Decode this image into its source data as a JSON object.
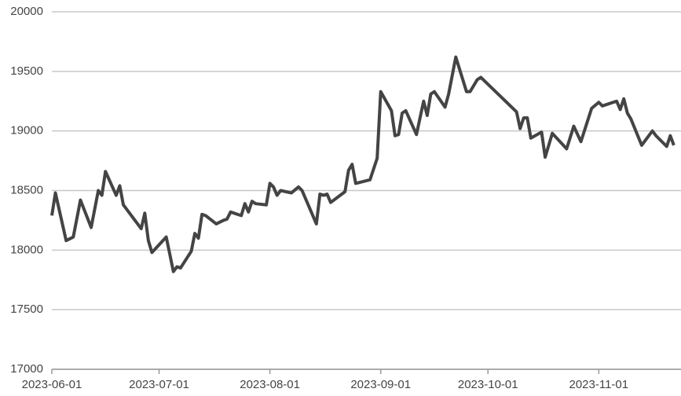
{
  "chart_data": {
    "type": "line",
    "x": [
      "2023-06-01",
      "2023-06-02",
      "2023-06-05",
      "2023-06-07",
      "2023-06-09",
      "2023-06-12",
      "2023-06-14",
      "2023-06-15",
      "2023-06-16",
      "2023-06-19",
      "2023-06-20",
      "2023-06-21",
      "2023-06-26",
      "2023-06-27",
      "2023-06-28",
      "2023-06-29",
      "2023-07-03",
      "2023-07-05",
      "2023-07-06",
      "2023-07-07",
      "2023-07-10",
      "2023-07-11",
      "2023-07-12",
      "2023-07-13",
      "2023-07-14",
      "2023-07-17",
      "2023-07-19",
      "2023-07-20",
      "2023-07-21",
      "2023-07-24",
      "2023-07-25",
      "2023-07-26",
      "2023-07-27",
      "2023-07-28",
      "2023-07-31",
      "2023-08-01",
      "2023-08-02",
      "2023-08-03",
      "2023-08-04",
      "2023-08-07",
      "2023-08-09",
      "2023-08-10",
      "2023-08-14",
      "2023-08-15",
      "2023-08-16",
      "2023-08-17",
      "2023-08-18",
      "2023-08-22",
      "2023-08-23",
      "2023-08-24",
      "2023-08-25",
      "2023-08-29",
      "2023-08-31",
      "2023-09-01",
      "2023-09-04",
      "2023-09-05",
      "2023-09-06",
      "2023-09-07",
      "2023-09-08",
      "2023-09-11",
      "2023-09-13",
      "2023-09-14",
      "2023-09-15",
      "2023-09-16",
      "2023-09-19",
      "2023-09-20",
      "2023-09-22",
      "2023-09-25",
      "2023-09-26",
      "2023-09-28",
      "2023-09-29",
      "2023-10-09",
      "2023-10-10",
      "2023-10-11",
      "2023-10-12",
      "2023-10-13",
      "2023-10-16",
      "2023-10-17",
      "2023-10-19",
      "2023-10-23",
      "2023-10-25",
      "2023-10-27",
      "2023-10-30",
      "2023-11-01",
      "2023-11-02",
      "2023-11-06",
      "2023-11-07",
      "2023-11-08",
      "2023-11-09",
      "2023-11-10",
      "2023-11-13",
      "2023-11-15",
      "2023-11-16",
      "2023-11-17",
      "2023-11-20",
      "2023-11-21",
      "2023-11-22"
    ],
    "series": [
      {
        "color": "#444444",
        "values": [
          18290,
          18480,
          18080,
          18110,
          18420,
          18190,
          18500,
          18460,
          18660,
          18460,
          18540,
          18380,
          18180,
          18310,
          18080,
          17980,
          18110,
          17820,
          17860,
          17850,
          17990,
          18140,
          18100,
          18300,
          18290,
          18220,
          18250,
          18260,
          18320,
          18290,
          18390,
          18320,
          18410,
          18390,
          18380,
          18560,
          18530,
          18460,
          18500,
          18480,
          18530,
          18500,
          18220,
          18470,
          18460,
          18470,
          18400,
          18490,
          18670,
          18720,
          18560,
          18590,
          18770,
          19330,
          19170,
          18960,
          18970,
          19150,
          19170,
          18970,
          19250,
          19130,
          19310,
          19330,
          19200,
          19310,
          19620,
          19330,
          19330,
          19430,
          19450,
          19160,
          19020,
          19110,
          19110,
          18940,
          18990,
          18780,
          18980,
          18850,
          19040,
          18910,
          19190,
          19240,
          19210,
          19250,
          19180,
          19270,
          19150,
          19100,
          18880,
          18960,
          19000,
          18960,
          18870,
          18960,
          18880
        ]
      }
    ],
    "xlim": [
      "2023-06-01",
      "2023-11-24"
    ],
    "xticks": [
      "2023-06-01",
      "2023-07-01",
      "2023-08-01",
      "2023-09-01",
      "2023-10-01",
      "2023-11-01"
    ],
    "ylim": [
      17000,
      20000
    ],
    "yticks": [
      17000,
      17500,
      18000,
      18500,
      19000,
      19500,
      20000
    ],
    "grid": true
  }
}
